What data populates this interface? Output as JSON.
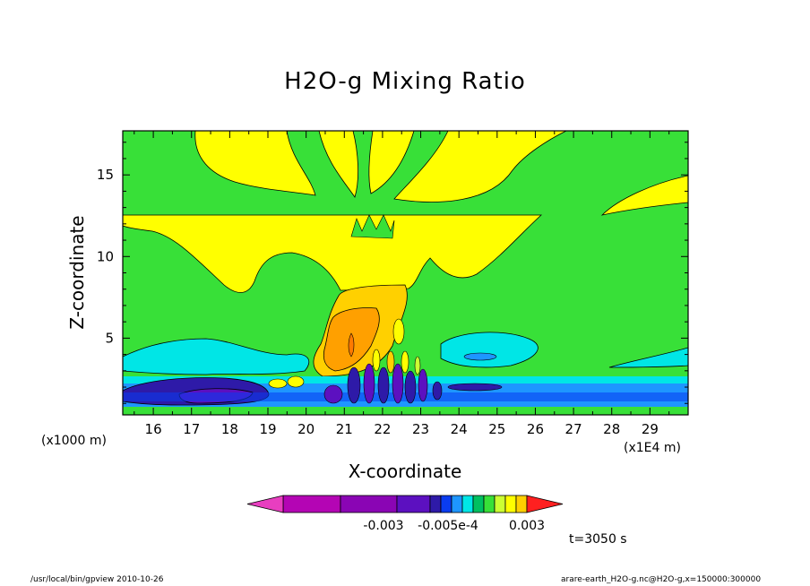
{
  "chart_data": {
    "type": "heatmap",
    "title": "H2O-g Mixing Ratio",
    "xlabel": "X-coordinate",
    "ylabel": "Z-coordinate",
    "x_unit": "(x1E4 m)",
    "y_unit": "(x1000 m)",
    "xlim": [
      15.2,
      30.0
    ],
    "ylim": [
      0.3,
      17.7
    ],
    "x_ticks": [
      "16",
      "17",
      "18",
      "19",
      "20",
      "21",
      "22",
      "23",
      "24",
      "25",
      "26",
      "27",
      "28",
      "29"
    ],
    "y_ticks": [
      "5",
      "10",
      "15"
    ],
    "colorbar": {
      "colors": [
        "#e83ec0",
        "#b405b4",
        "#8a05b4",
        "#5c10c0",
        "#2e1aa8",
        "#0a3cf0",
        "#1e96ff",
        "#00e6e6",
        "#00c060",
        "#38e038",
        "#ccff33",
        "#ffff00",
        "#ffd000",
        "#ffa000",
        "#ff7a00",
        "#ff2020"
      ],
      "labels": [
        "-0.003",
        "-0.005e-4",
        "0.003"
      ]
    },
    "annotation": "t=3050 s"
  },
  "footer": {
    "left": "/usr/local/bin/gpview  2010-10-26",
    "right": "arare-earth_H2O-g.nc@H2O-g,x=150000:300000"
  }
}
